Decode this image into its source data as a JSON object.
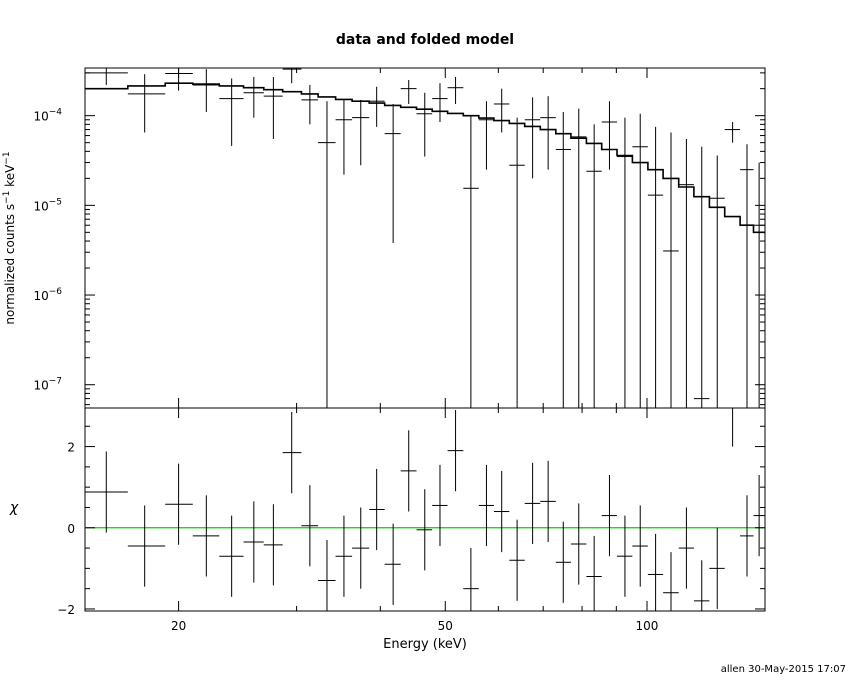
{
  "title": "data and folded model",
  "footer": "allen 30-May-2015 17:07",
  "colors": {
    "axes": "#000000",
    "data": "#000000",
    "model": "#000000",
    "zero_line": "#00d000"
  },
  "chart_data": [
    {
      "panel": "top",
      "type": "scatter",
      "xscale": "log",
      "yscale": "log",
      "xlim": [
        14.5,
        150
      ],
      "ylim": [
        5.5e-08,
        0.00034
      ],
      "ylabel": "normalized counts s",
      "ylabel_sup1": "−1",
      "ylabel_mid": " keV",
      "ylabel_sup2": "−1",
      "yticks": [
        {
          "value": 1e-07,
          "base": "10",
          "exp": "−7"
        },
        {
          "value": 1e-06,
          "base": "10",
          "exp": "−6"
        },
        {
          "value": 1e-05,
          "base": "10",
          "exp": "−5"
        },
        {
          "value": 0.0001,
          "base": "10",
          "exp": "−4"
        }
      ],
      "series": [
        {
          "kind": "data_with_errors",
          "points": [
            {
              "x": 15.6,
              "xlo": 14.5,
              "xhi": 16.8,
              "y": 0.0003,
              "ylo": 0.00022,
              "yhi": 0.00034
            },
            {
              "x": 17.8,
              "xlo": 16.8,
              "xhi": 19.1,
              "y": 0.000175,
              "ylo": 6.5e-05,
              "yhi": 0.00029
            },
            {
              "x": 20.0,
              "xlo": 19.1,
              "xhi": 21.0,
              "y": 0.000295,
              "ylo": 0.00019,
              "yhi": 0.00034
            },
            {
              "x": 22.0,
              "xlo": 21.0,
              "xhi": 23.0,
              "y": 0.00022,
              "ylo": 0.00011,
              "yhi": 0.00033
            },
            {
              "x": 24.0,
              "xlo": 23.0,
              "xhi": 25.0,
              "y": 0.000155,
              "ylo": 4.6e-05,
              "yhi": 0.00026
            },
            {
              "x": 25.9,
              "xlo": 25.0,
              "xhi": 26.8,
              "y": 0.00018,
              "ylo": 9.5e-05,
              "yhi": 0.00027
            },
            {
              "x": 27.7,
              "xlo": 26.8,
              "xhi": 28.6,
              "y": 0.000165,
              "ylo": 5.5e-05,
              "yhi": 0.00027
            },
            {
              "x": 29.5,
              "xlo": 28.6,
              "xhi": 30.5,
              "y": 0.00033,
              "ylo": 0.00023,
              "yhi": 0.00034
            },
            {
              "x": 31.4,
              "xlo": 30.5,
              "xhi": 32.3,
              "y": 0.00015,
              "ylo": 8e-05,
              "yhi": 0.00022
            },
            {
              "x": 33.3,
              "xlo": 32.3,
              "xhi": 34.3,
              "y": 5e-05,
              "ylo": 5.5e-08,
              "yhi": 0.000145
            },
            {
              "x": 35.3,
              "xlo": 34.3,
              "xhi": 36.3,
              "y": 9e-05,
              "ylo": 2.2e-05,
              "yhi": 0.00015
            },
            {
              "x": 37.4,
              "xlo": 36.3,
              "xhi": 38.5,
              "y": 9.5e-05,
              "ylo": 2.8e-05,
              "yhi": 0.00015
            },
            {
              "x": 39.5,
              "xlo": 38.5,
              "xhi": 40.6,
              "y": 0.000145,
              "ylo": 7.5e-05,
              "yhi": 0.00021
            },
            {
              "x": 41.8,
              "xlo": 40.6,
              "xhi": 42.9,
              "y": 6.3e-05,
              "ylo": 3.8e-06,
              "yhi": 0.000135
            },
            {
              "x": 44.1,
              "xlo": 42.9,
              "xhi": 45.3,
              "y": 0.0002,
              "ylo": 0.000135,
              "yhi": 0.00025
            },
            {
              "x": 46.6,
              "xlo": 45.3,
              "xhi": 47.8,
              "y": 0.000105,
              "ylo": 3.5e-05,
              "yhi": 0.00018
            },
            {
              "x": 49.1,
              "xlo": 47.8,
              "xhi": 50.4,
              "y": 0.000155,
              "ylo": 8.5e-05,
              "yhi": 0.00023
            },
            {
              "x": 51.8,
              "xlo": 50.4,
              "xhi": 53.2,
              "y": 0.000205,
              "ylo": 0.000135,
              "yhi": 0.00027
            },
            {
              "x": 54.6,
              "xlo": 53.2,
              "xhi": 56.1,
              "y": 1.55e-05,
              "ylo": 5.5e-08,
              "yhi": 0.0001
            },
            {
              "x": 57.6,
              "xlo": 56.1,
              "xhi": 59.1,
              "y": 9e-05,
              "ylo": 2.5e-05,
              "yhi": 0.000145
            },
            {
              "x": 60.7,
              "xlo": 59.1,
              "xhi": 62.3,
              "y": 0.000135,
              "ylo": 6.5e-05,
              "yhi": 0.0002
            },
            {
              "x": 64.0,
              "xlo": 62.3,
              "xhi": 65.7,
              "y": 2.8e-05,
              "ylo": 5.5e-08,
              "yhi": 9.5e-05
            },
            {
              "x": 67.5,
              "xlo": 65.7,
              "xhi": 69.3,
              "y": 9e-05,
              "ylo": 2e-05,
              "yhi": 0.00016
            },
            {
              "x": 71.2,
              "xlo": 69.3,
              "xhi": 73.1,
              "y": 9.5e-05,
              "ylo": 2.5e-05,
              "yhi": 0.000165
            },
            {
              "x": 75.0,
              "xlo": 73.1,
              "xhi": 77.0,
              "y": 4.2e-05,
              "ylo": 5.5e-08,
              "yhi": 0.00011
            },
            {
              "x": 79.1,
              "xlo": 77.0,
              "xhi": 81.2,
              "y": 5.8e-05,
              "ylo": 5.5e-08,
              "yhi": 0.00012
            },
            {
              "x": 83.4,
              "xlo": 81.2,
              "xhi": 85.6,
              "y": 2.4e-05,
              "ylo": 5.5e-08,
              "yhi": 8e-05
            },
            {
              "x": 87.9,
              "xlo": 85.6,
              "xhi": 90.2,
              "y": 8.5e-05,
              "ylo": 2.5e-05,
              "yhi": 0.000145
            },
            {
              "x": 92.7,
              "xlo": 90.2,
              "xhi": 95.1,
              "y": 3.5e-05,
              "ylo": 5.5e-08,
              "yhi": 9.5e-05
            },
            {
              "x": 97.7,
              "xlo": 95.1,
              "xhi": 100.3,
              "y": 4.5e-05,
              "ylo": 5.5e-08,
              "yhi": 0.000105
            },
            {
              "x": 103.0,
              "xlo": 100.3,
              "xhi": 105.7,
              "y": 1.3e-05,
              "ylo": 5.5e-08,
              "yhi": 7.5e-05
            },
            {
              "x": 108.6,
              "xlo": 105.7,
              "xhi": 111.5,
              "y": 3.1e-06,
              "ylo": 5.5e-08,
              "yhi": 6.5e-05
            },
            {
              "x": 114.5,
              "xlo": 111.5,
              "xhi": 117.5,
              "y": 1.7e-05,
              "ylo": 5.5e-08,
              "yhi": 5.5e-05
            },
            {
              "x": 120.7,
              "xlo": 117.5,
              "xhi": 123.9,
              "y": 7e-08,
              "ylo": 5.5e-08,
              "yhi": 4.5e-05
            },
            {
              "x": 127.3,
              "xlo": 123.9,
              "xhi": 130.6,
              "y": 1.2e-05,
              "ylo": 5.5e-08,
              "yhi": 3.6e-05
            },
            {
              "x": 134.2,
              "xlo": 130.6,
              "xhi": 137.7,
              "y": 7e-05,
              "ylo": 5e-05,
              "yhi": 8.5e-05
            },
            {
              "x": 141.0,
              "xlo": 137.7,
              "xhi": 144.2,
              "y": 2.5e-05,
              "ylo": 5.5e-08,
              "yhi": 4.8e-05
            },
            {
              "x": 147.0,
              "xlo": 144.2,
              "xhi": 150.0,
              "y": 6e-06,
              "ylo": 5.5e-08,
              "yhi": 3e-05
            }
          ]
        },
        {
          "kind": "model_step",
          "points": [
            [
              14.5,
              0.0002
            ],
            [
              16.8,
              0.000215
            ],
            [
              19.1,
              0.00023
            ],
            [
              21.0,
              0.000225
            ],
            [
              23.0,
              0.000215
            ],
            [
              25.0,
              0.000205
            ],
            [
              26.8,
              0.000195
            ],
            [
              28.6,
              0.000185
            ],
            [
              30.5,
              0.000175
            ],
            [
              32.3,
              0.000162
            ],
            [
              34.3,
              0.000152
            ],
            [
              36.3,
              0.000145
            ],
            [
              38.5,
              0.000138
            ],
            [
              40.6,
              0.00013
            ],
            [
              42.9,
              0.000124
            ],
            [
              45.3,
              0.000118
            ],
            [
              47.8,
              0.000112
            ],
            [
              50.4,
              0.000106
            ],
            [
              53.2,
              0.0001
            ],
            [
              56.1,
              9.4e-05
            ],
            [
              59.1,
              8.8e-05
            ],
            [
              62.3,
              8.2e-05
            ],
            [
              65.7,
              7.6e-05
            ],
            [
              69.3,
              7e-05
            ],
            [
              73.1,
              6.3e-05
            ],
            [
              77.0,
              5.6e-05
            ],
            [
              81.2,
              4.9e-05
            ],
            [
              85.6,
              4.2e-05
            ],
            [
              90.2,
              3.6e-05
            ],
            [
              95.1,
              3e-05
            ],
            [
              100.3,
              2.5e-05
            ],
            [
              105.7,
              2e-05
            ],
            [
              111.5,
              1.6e-05
            ],
            [
              117.5,
              1.25e-05
            ],
            [
              123.9,
              9.5e-06
            ],
            [
              130.6,
              7.5e-06
            ],
            [
              137.7,
              6e-06
            ],
            [
              144.2,
              5e-06
            ],
            [
              150.0,
              4.3e-06
            ]
          ]
        }
      ]
    },
    {
      "panel": "bottom",
      "type": "scatter",
      "xscale": "log",
      "yscale": "linear",
      "xlim": [
        14.5,
        150
      ],
      "ylim": [
        -2.05,
        2.95
      ],
      "xlabel": "Energy (keV)",
      "ylabel": "χ",
      "xticks": [
        {
          "value": 20,
          "label": "20"
        },
        {
          "value": 50,
          "label": "50"
        },
        {
          "value": 100,
          "label": "100"
        }
      ],
      "yticks": [
        {
          "value": -2,
          "label": "−2"
        },
        {
          "value": 0,
          "label": "0"
        },
        {
          "value": 2,
          "label": "2"
        }
      ],
      "zero_line": 0,
      "series": [
        {
          "kind": "residuals",
          "points": [
            {
              "x": 15.6,
              "xlo": 14.5,
              "xhi": 16.8,
              "y": 0.88
            },
            {
              "x": 17.8,
              "xlo": 16.8,
              "xhi": 19.1,
              "y": -0.45
            },
            {
              "x": 20.0,
              "xlo": 19.1,
              "xhi": 21.0,
              "y": 0.58
            },
            {
              "x": 22.0,
              "xlo": 21.0,
              "xhi": 23.0,
              "y": -0.2
            },
            {
              "x": 24.0,
              "xlo": 23.0,
              "xhi": 25.0,
              "y": -0.7
            },
            {
              "x": 25.9,
              "xlo": 25.0,
              "xhi": 26.8,
              "y": -0.35
            },
            {
              "x": 27.7,
              "xlo": 26.8,
              "xhi": 28.6,
              "y": -0.42
            },
            {
              "x": 29.5,
              "xlo": 28.6,
              "xhi": 30.5,
              "y": 1.85
            },
            {
              "x": 31.4,
              "xlo": 30.5,
              "xhi": 32.3,
              "y": 0.05
            },
            {
              "x": 33.3,
              "xlo": 32.3,
              "xhi": 34.3,
              "y": -1.3
            },
            {
              "x": 35.3,
              "xlo": 34.3,
              "xhi": 36.3,
              "y": -0.7
            },
            {
              "x": 37.4,
              "xlo": 36.3,
              "xhi": 38.5,
              "y": -0.5
            },
            {
              "x": 39.5,
              "xlo": 38.5,
              "xhi": 40.6,
              "y": 0.45
            },
            {
              "x": 41.8,
              "xlo": 40.6,
              "xhi": 42.9,
              "y": -0.9
            },
            {
              "x": 44.1,
              "xlo": 42.9,
              "xhi": 45.3,
              "y": 1.4
            },
            {
              "x": 46.6,
              "xlo": 45.3,
              "xhi": 47.8,
              "y": -0.05
            },
            {
              "x": 49.1,
              "xlo": 47.8,
              "xhi": 50.4,
              "y": 0.55
            },
            {
              "x": 51.8,
              "xlo": 50.4,
              "xhi": 53.2,
              "y": 1.9
            },
            {
              "x": 54.6,
              "xlo": 53.2,
              "xhi": 56.1,
              "y": -1.5
            },
            {
              "x": 57.6,
              "xlo": 56.1,
              "xhi": 59.1,
              "y": 0.55
            },
            {
              "x": 60.7,
              "xlo": 59.1,
              "xhi": 62.3,
              "y": 0.4
            },
            {
              "x": 64.0,
              "xlo": 62.3,
              "xhi": 65.7,
              "y": -0.8
            },
            {
              "x": 67.5,
              "xlo": 65.7,
              "xhi": 69.3,
              "y": 0.6
            },
            {
              "x": 71.2,
              "xlo": 69.3,
              "xhi": 73.1,
              "y": 0.65
            },
            {
              "x": 75.0,
              "xlo": 73.1,
              "xhi": 77.0,
              "y": -0.85
            },
            {
              "x": 79.1,
              "xlo": 77.0,
              "xhi": 81.2,
              "y": -0.4
            },
            {
              "x": 83.4,
              "xlo": 81.2,
              "xhi": 85.6,
              "y": -1.2
            },
            {
              "x": 87.9,
              "xlo": 85.6,
              "xhi": 90.2,
              "y": 0.3
            },
            {
              "x": 92.7,
              "xlo": 90.2,
              "xhi": 95.1,
              "y": -0.7
            },
            {
              "x": 97.7,
              "xlo": 95.1,
              "xhi": 100.3,
              "y": -0.45
            },
            {
              "x": 103.0,
              "xlo": 100.3,
              "xhi": 105.7,
              "y": -1.15
            },
            {
              "x": 108.6,
              "xlo": 105.7,
              "xhi": 111.5,
              "y": -1.6
            },
            {
              "x": 114.5,
              "xlo": 111.5,
              "xhi": 117.5,
              "y": -0.5
            },
            {
              "x": 120.7,
              "xlo": 117.5,
              "xhi": 123.9,
              "y": -1.8
            },
            {
              "x": 127.3,
              "xlo": 123.9,
              "xhi": 130.6,
              "y": -1.0
            },
            {
              "x": 134.2,
              "xlo": 130.6,
              "xhi": 137.7,
              "y": 3.0
            },
            {
              "x": 141.0,
              "xlo": 137.7,
              "xhi": 144.2,
              "y": -0.2
            },
            {
              "x": 147.0,
              "xlo": 144.2,
              "xhi": 150.0,
              "y": 0.3
            }
          ]
        }
      ]
    }
  ]
}
